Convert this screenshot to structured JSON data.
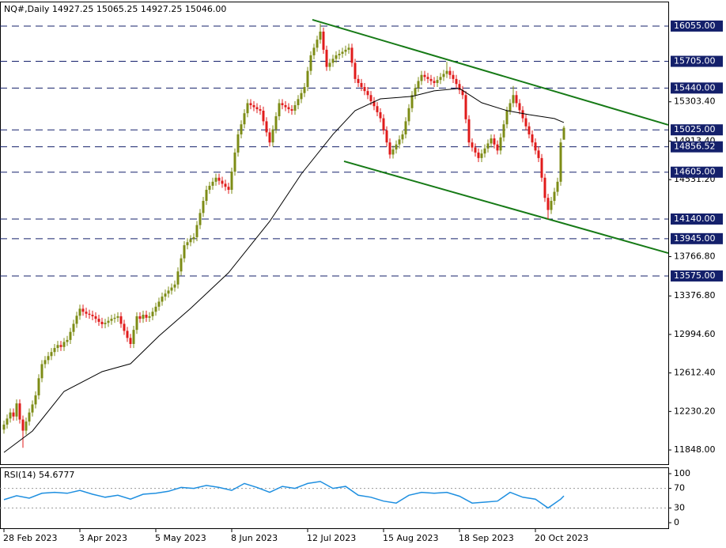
{
  "chart_data": [
    {
      "type": "candlestick",
      "title": "NQ#,Daily  14927.25 15065.25 14927.25 15046.00",
      "up_color": "#7d8c16",
      "down_color": "#e01b1b",
      "ylim": [
        11707,
        16298
      ],
      "xlim": [
        -1.25,
        210
      ],
      "yticks": [
        {
          "value": 15303.4,
          "label": "15303.40"
        },
        {
          "value": 14913.4,
          "label": "14913.40"
        },
        {
          "value": 14531.2,
          "label": "14531.20"
        },
        {
          "value": 13766.8,
          "label": "13766.80"
        },
        {
          "value": 13376.8,
          "label": "13376.80"
        },
        {
          "value": 12994.6,
          "label": "12994.60"
        },
        {
          "value": 12612.4,
          "label": "12612.40"
        },
        {
          "value": 12230.2,
          "label": "12230.20"
        },
        {
          "value": 11848,
          "label": "11848.00"
        }
      ],
      "levels": [
        {
          "value": 16055,
          "label": "16055.00"
        },
        {
          "value": 15705,
          "label": "15705.00"
        },
        {
          "value": 15440,
          "label": "15440.00"
        },
        {
          "value": 15025,
          "label": "15025.00"
        },
        {
          "value": 14856.52,
          "label": "14856.52"
        },
        {
          "value": 14605,
          "label": "14605.00"
        },
        {
          "value": 14140,
          "label": "14140.00"
        },
        {
          "value": 13945,
          "label": "13945.00"
        },
        {
          "value": 13575,
          "label": "13575.00"
        }
      ],
      "level_color": "#14206b",
      "xticks": [
        {
          "value": 0,
          "label": "28 Feb 2023"
        },
        {
          "value": 24,
          "label": "3 Apr 2023"
        },
        {
          "value": 48,
          "label": "5 May 2023"
        },
        {
          "value": 72,
          "label": "8 Jun 2023"
        },
        {
          "value": 96,
          "label": "12 Jul 2023"
        },
        {
          "value": 120,
          "label": "15 Aug 2023"
        },
        {
          "value": 144,
          "label": "18 Sep 2023"
        },
        {
          "value": 168,
          "label": "20 Oct 2023"
        }
      ],
      "open": [
        12050,
        12100,
        12160,
        12220,
        12180,
        12310,
        12150,
        12040,
        12130,
        12220,
        12300,
        12390,
        12560,
        12700,
        12740,
        12780,
        12820,
        12860,
        12890,
        12870,
        12920,
        12940,
        13020,
        13100,
        13180,
        13250,
        13220,
        13200,
        13190,
        13175,
        13150,
        13120,
        13096,
        13110,
        13130,
        13150,
        13160,
        13175,
        13100,
        13030,
        12960,
        12900,
        13040,
        13175,
        13150,
        13190,
        13160,
        13175,
        13220,
        13270,
        13320,
        13370,
        13400,
        13430,
        13460,
        13490,
        13620,
        13750,
        13880,
        13910,
        13940,
        13960,
        14080,
        14200,
        14320,
        14430,
        14470,
        14510,
        14550,
        14520,
        14490,
        14460,
        14430,
        14610,
        14800,
        14980,
        15080,
        15190,
        15290,
        15270,
        15250,
        15230,
        15215,
        15110,
        15000,
        14900,
        15030,
        15160,
        15290,
        15270,
        15250,
        15230,
        15215,
        15270,
        15330,
        15390,
        15450,
        15610,
        15765,
        15840,
        15920,
        16000,
        15820,
        15650,
        15690,
        15730,
        15765,
        15780,
        15800,
        15820,
        15840,
        15690,
        15530,
        15490,
        15450,
        15410,
        15370,
        15310,
        15260,
        15200,
        15140,
        15020,
        14900,
        14780,
        14830,
        14880,
        14930,
        14980,
        15110,
        15240,
        15370,
        15440,
        15510,
        15570,
        15550,
        15530,
        15510,
        15490,
        15520,
        15550,
        15580,
        15610,
        15570,
        15530,
        15480,
        15420,
        15370,
        15130,
        14900,
        14850,
        14800,
        14745,
        14790,
        14840,
        14890,
        14940,
        14880,
        14820,
        14950,
        15080,
        15215,
        15290,
        15370,
        15290,
        15220,
        15140,
        15060,
        14980,
        14900,
        14820,
        14745,
        14550,
        14350,
        14230,
        14320,
        14410,
        14510,
        14927.25
      ],
      "high": [
        12140,
        12200,
        12260,
        12260,
        12350,
        12350,
        12190,
        12170,
        12260,
        12340,
        12430,
        12600,
        12740,
        12780,
        12820,
        12860,
        12900,
        12930,
        12930,
        12960,
        12980,
        13060,
        13140,
        13220,
        13290,
        13290,
        13260,
        13240,
        13230,
        13215,
        13190,
        13160,
        13150,
        13170,
        13190,
        13200,
        13215,
        13215,
        13140,
        13070,
        13000,
        13080,
        13215,
        13215,
        13230,
        13230,
        13215,
        13260,
        13310,
        13360,
        13410,
        13440,
        13470,
        13500,
        13530,
        13660,
        13790,
        13920,
        13950,
        13980,
        14000,
        14120,
        14240,
        14360,
        14470,
        14510,
        14550,
        14590,
        14590,
        14560,
        14530,
        14500,
        14650,
        14840,
        15020,
        15120,
        15230,
        15330,
        15330,
        15310,
        15290,
        15270,
        15255,
        15150,
        15040,
        15070,
        15200,
        15330,
        15330,
        15310,
        15290,
        15270,
        15310,
        15370,
        15430,
        15490,
        15650,
        15805,
        15880,
        15960,
        16080,
        16040,
        15860,
        15730,
        15770,
        15805,
        15820,
        15840,
        15860,
        15880,
        15880,
        15730,
        15570,
        15530,
        15490,
        15450,
        15410,
        15350,
        15300,
        15240,
        15180,
        15060,
        14940,
        14870,
        14920,
        14970,
        15020,
        15150,
        15280,
        15410,
        15480,
        15550,
        15610,
        15610,
        15590,
        15570,
        15550,
        15560,
        15590,
        15620,
        15700,
        15650,
        15610,
        15570,
        15520,
        15460,
        15410,
        15170,
        14940,
        14890,
        14840,
        14830,
        14880,
        14930,
        14980,
        14980,
        14920,
        14990,
        15120,
        15255,
        15330,
        15460,
        15410,
        15330,
        15260,
        15180,
        15100,
        15020,
        14940,
        14860,
        14785,
        14590,
        14390,
        14360,
        14450,
        14550,
        14940,
        15065.25
      ],
      "low": [
        12010,
        12060,
        12120,
        12140,
        12140,
        12110,
        11870,
        12000,
        12090,
        12180,
        12260,
        12350,
        12520,
        12660,
        12700,
        12740,
        12780,
        12820,
        12830,
        12830,
        12880,
        12900,
        12980,
        13060,
        13140,
        13180,
        13160,
        13150,
        13135,
        13110,
        13080,
        13056,
        13056,
        13070,
        13090,
        13110,
        13120,
        13060,
        12990,
        12920,
        12860,
        12860,
        13000,
        13110,
        13110,
        13120,
        13120,
        13135,
        13180,
        13230,
        13280,
        13330,
        13360,
        13390,
        13420,
        13450,
        13580,
        13710,
        13840,
        13870,
        13900,
        13920,
        14040,
        14160,
        14280,
        14390,
        14430,
        14470,
        14480,
        14450,
        14420,
        14390,
        14390,
        14570,
        14760,
        14940,
        15040,
        15150,
        15230,
        15210,
        15190,
        15175,
        15070,
        14960,
        14860,
        14860,
        14990,
        15120,
        15230,
        15210,
        15190,
        15175,
        15175,
        15230,
        15290,
        15350,
        15410,
        15570,
        15725,
        15800,
        15880,
        15780,
        15610,
        15610,
        15650,
        15690,
        15725,
        15740,
        15760,
        15780,
        15650,
        15490,
        15450,
        15410,
        15370,
        15330,
        15270,
        15220,
        15160,
        15100,
        14980,
        14860,
        14740,
        14740,
        14790,
        14840,
        14890,
        14940,
        15070,
        15200,
        15330,
        15400,
        15470,
        15510,
        15490,
        15470,
        15450,
        15450,
        15480,
        15510,
        15540,
        15530,
        15490,
        15440,
        15380,
        15330,
        15090,
        14860,
        14810,
        14760,
        14705,
        14705,
        14750,
        14800,
        14850,
        14840,
        14780,
        14780,
        14910,
        15040,
        15175,
        15250,
        15250,
        15180,
        15100,
        15020,
        14940,
        14860,
        14780,
        14705,
        14510,
        14310,
        14140,
        14190,
        14280,
        14370,
        14470,
        14927.25
      ],
      "close": [
        12100,
        12160,
        12220,
        12180,
        12310,
        12150,
        12040,
        12130,
        12220,
        12300,
        12390,
        12560,
        12700,
        12740,
        12780,
        12820,
        12860,
        12890,
        12870,
        12920,
        12940,
        13020,
        13100,
        13180,
        13250,
        13220,
        13200,
        13190,
        13175,
        13150,
        13120,
        13096,
        13110,
        13130,
        13150,
        13160,
        13175,
        13100,
        13030,
        12960,
        12900,
        13040,
        13175,
        13150,
        13190,
        13160,
        13175,
        13220,
        13270,
        13320,
        13370,
        13400,
        13430,
        13460,
        13490,
        13620,
        13750,
        13880,
        13910,
        13940,
        13960,
        14080,
        14200,
        14320,
        14430,
        14470,
        14510,
        14550,
        14520,
        14490,
        14460,
        14430,
        14610,
        14800,
        14980,
        15080,
        15190,
        15290,
        15270,
        15250,
        15230,
        15215,
        15110,
        15000,
        14900,
        15030,
        15160,
        15290,
        15270,
        15250,
        15230,
        15215,
        15270,
        15330,
        15390,
        15450,
        15610,
        15765,
        15840,
        15920,
        16000,
        15820,
        15650,
        15690,
        15730,
        15765,
        15780,
        15800,
        15820,
        15840,
        15690,
        15530,
        15490,
        15450,
        15410,
        15370,
        15310,
        15260,
        15200,
        15140,
        15020,
        14900,
        14780,
        14830,
        14880,
        14930,
        14980,
        15110,
        15240,
        15370,
        15440,
        15510,
        15570,
        15550,
        15530,
        15510,
        15490,
        15520,
        15550,
        15580,
        15610,
        15570,
        15530,
        15480,
        15420,
        15370,
        15130,
        14900,
        14850,
        14800,
        14745,
        14790,
        14840,
        14890,
        14940,
        14880,
        14820,
        14950,
        15080,
        15215,
        15290,
        15370,
        15290,
        15220,
        15140,
        15060,
        14980,
        14900,
        14820,
        14745,
        14550,
        14350,
        14230,
        14320,
        14410,
        14510,
        14900,
        15046
      ],
      "ma": {
        "color": "#000000",
        "x": [
          0,
          9,
          19,
          31,
          40,
          49,
          59,
          71,
          84,
          94,
          104,
          111,
          119,
          129,
          136,
          144,
          151,
          159,
          166,
          174,
          177
        ],
        "values": [
          11824,
          12036,
          12429,
          12625,
          12704,
          12979,
          13253,
          13607,
          14116,
          14587,
          14980,
          15216,
          15333,
          15357,
          15412,
          15436,
          15294,
          15216,
          15176,
          15137,
          15098
        ]
      },
      "trendlines": [
        {
          "color": "#167a16",
          "x": [
            97.5,
            210
          ],
          "values": [
            16118,
            15074
          ]
        },
        {
          "color": "#167a16",
          "x": [
            107.5,
            210
          ],
          "values": [
            14713,
            13802
          ]
        }
      ]
    },
    {
      "type": "line",
      "title": "RSI(14) 54.6777",
      "color": "#1e8fe0",
      "ylim": [
        -11.3,
        112.9
      ],
      "xlim": [
        -1.25,
        210
      ],
      "yticks": [
        100,
        70,
        30,
        0
      ],
      "levels": [
        70,
        30
      ],
      "x": [
        0,
        4,
        8,
        12,
        16,
        20,
        24,
        28,
        32,
        36,
        40,
        44,
        48,
        52,
        56,
        60,
        64,
        68,
        72,
        76,
        80,
        84,
        88,
        92,
        96,
        100,
        104,
        108,
        112,
        116,
        120,
        124,
        128,
        132,
        136,
        140,
        144,
        148,
        152,
        156,
        160,
        164,
        168,
        172,
        176,
        177
      ],
      "values": [
        47,
        55,
        50,
        60,
        62,
        60,
        66,
        58,
        52,
        56,
        48,
        58,
        60,
        64,
        72,
        70,
        76,
        72,
        66,
        80,
        72,
        62,
        74,
        70,
        80,
        84,
        70,
        74,
        56,
        52,
        44,
        40,
        56,
        62,
        60,
        62,
        54,
        40,
        42,
        44,
        62,
        52,
        48,
        30,
        48,
        54.6777
      ]
    }
  ]
}
